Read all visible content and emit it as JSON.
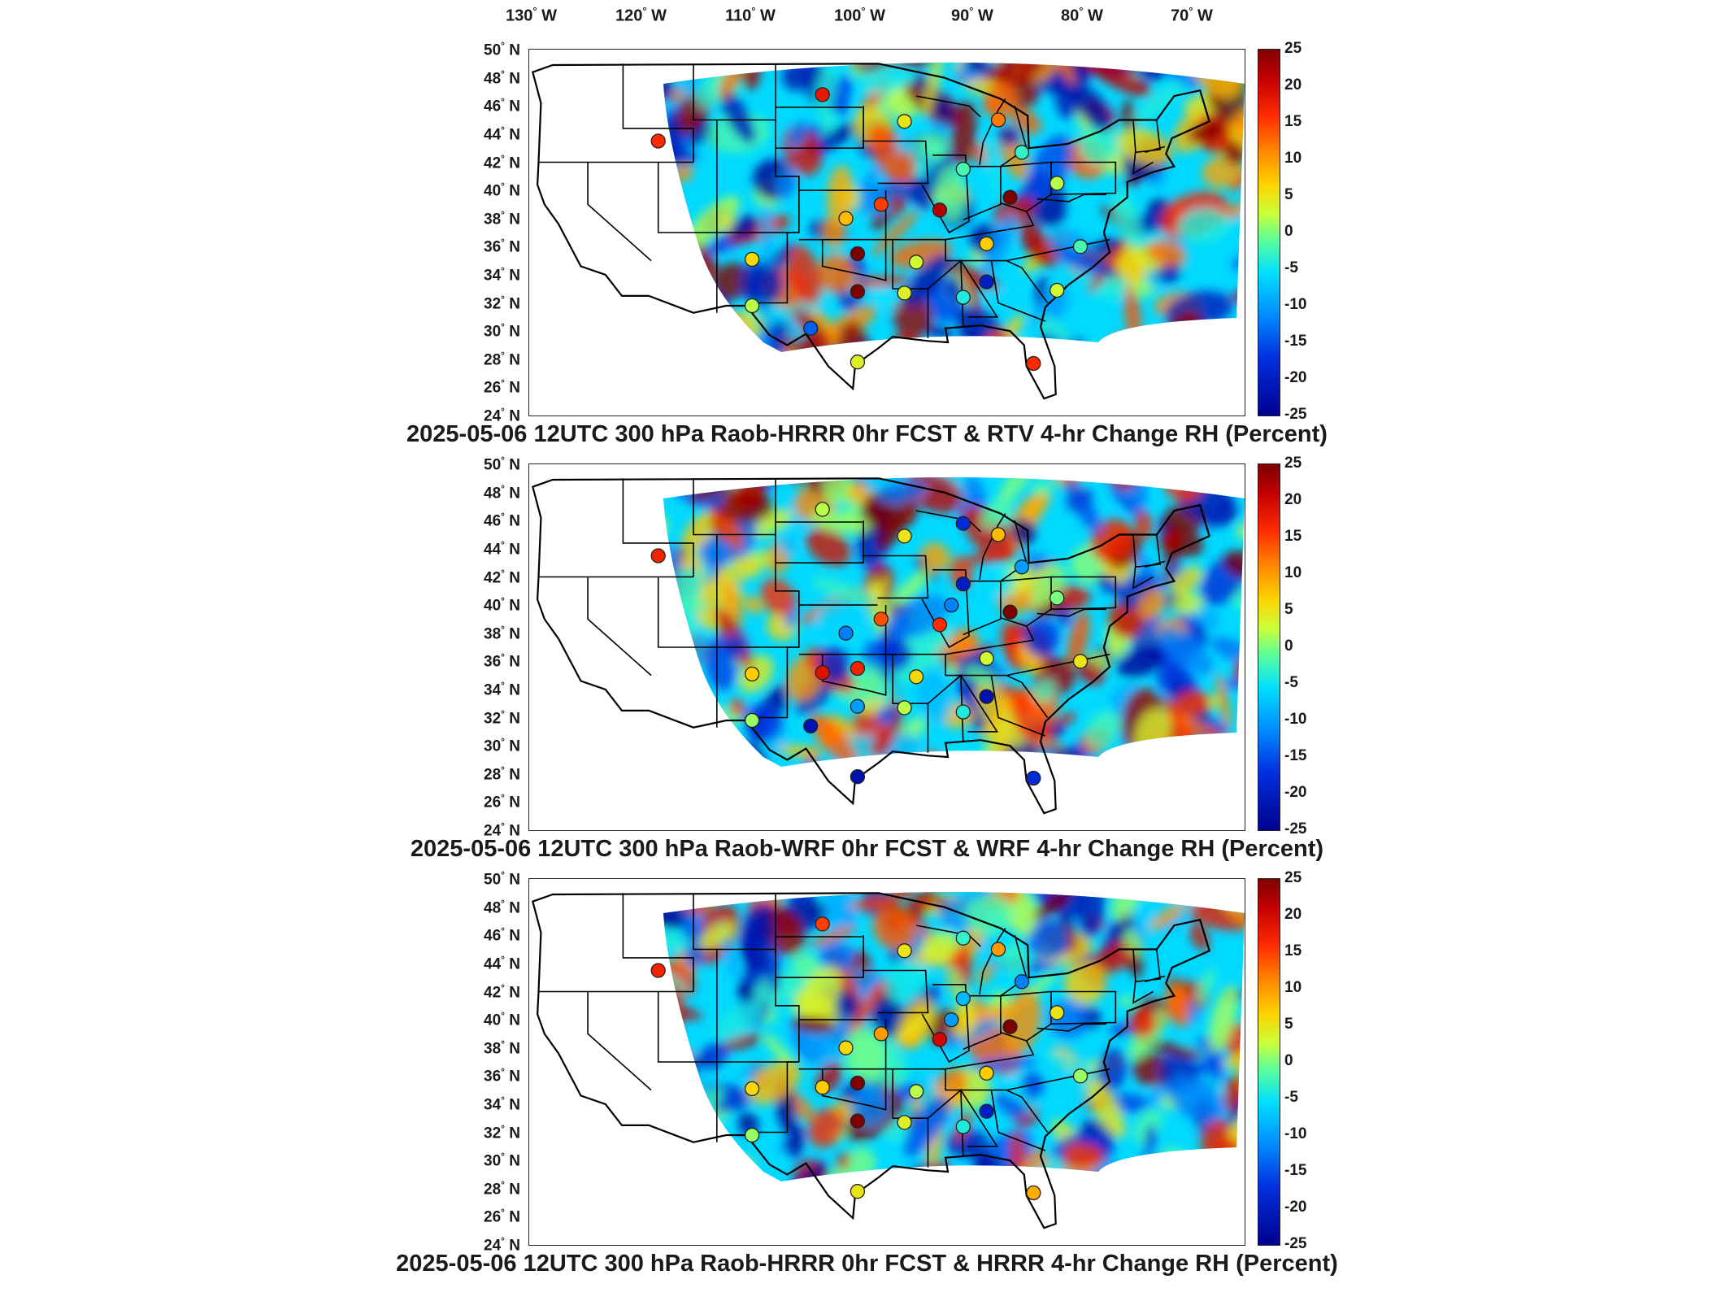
{
  "lon_labels": [
    "130",
    "120",
    "110",
    "100",
    "90",
    "80",
    "70"
  ],
  "lon_hemisphere": "W",
  "lat_labels": [
    "50",
    "48",
    "46",
    "44",
    "42",
    "40",
    "38",
    "36",
    "34",
    "32",
    "30",
    "28",
    "26",
    "24"
  ],
  "lat_hemisphere": "N",
  "degree_symbol": "°",
  "colorbar": {
    "ticks": [
      "25",
      "20",
      "15",
      "10",
      "5",
      "0",
      "-5",
      "-10",
      "-15",
      "-20",
      "-25"
    ],
    "range": [
      -25,
      25
    ],
    "colormap": "jet",
    "colors": [
      "#7f0000",
      "#ff2a00",
      "#ffd400",
      "#5dff9a",
      "#00e0ff",
      "#0030e0",
      "#00008f"
    ]
  },
  "panels": [
    {
      "title": "2025-05-06 12UTC 300 hPa Raob-HRRR 0hr FCST & RTV 4-hr Change RH (Percent)",
      "stations": [
        {
          "lon": -100,
          "lat": 46.8,
          "v": 18
        },
        {
          "lon": -114,
          "lat": 43.5,
          "v": 16
        },
        {
          "lon": -93,
          "lat": 44.9,
          "v": 5
        },
        {
          "lon": -85,
          "lat": 45.0,
          "v": 12
        },
        {
          "lon": -83,
          "lat": 42.7,
          "v": -3
        },
        {
          "lon": -88,
          "lat": 41.5,
          "v": -2
        },
        {
          "lon": -80,
          "lat": 40.5,
          "v": 2
        },
        {
          "lon": -98,
          "lat": 38.0,
          "v": 8
        },
        {
          "lon": -95,
          "lat": 39.0,
          "v": 15
        },
        {
          "lon": -90,
          "lat": 38.6,
          "v": 22
        },
        {
          "lon": -84,
          "lat": 39.5,
          "v": 25
        },
        {
          "lon": -86,
          "lat": 36.2,
          "v": 7
        },
        {
          "lon": -78,
          "lat": 36.0,
          "v": -2
        },
        {
          "lon": -106,
          "lat": 35.1,
          "v": 6
        },
        {
          "lon": -97,
          "lat": 35.5,
          "v": 25
        },
        {
          "lon": -92,
          "lat": 34.9,
          "v": 3
        },
        {
          "lon": -97,
          "lat": 32.8,
          "v": 25
        },
        {
          "lon": -93,
          "lat": 32.7,
          "v": 4
        },
        {
          "lon": -88,
          "lat": 32.4,
          "v": -4
        },
        {
          "lon": -86,
          "lat": 33.5,
          "v": -20
        },
        {
          "lon": -80,
          "lat": 32.9,
          "v": 3
        },
        {
          "lon": -106,
          "lat": 31.8,
          "v": 2
        },
        {
          "lon": -101,
          "lat": 30.2,
          "v": -14
        },
        {
          "lon": -97,
          "lat": 27.8,
          "v": 4
        },
        {
          "lon": -82,
          "lat": 27.7,
          "v": 16
        }
      ]
    },
    {
      "title": "2025-05-06 12UTC 300 hPa Raob-WRF 0hr FCST & WRF 4-hr Change RH (Percent)",
      "stations": [
        {
          "lon": -100,
          "lat": 46.8,
          "v": 2
        },
        {
          "lon": -114,
          "lat": 43.5,
          "v": 17
        },
        {
          "lon": -93,
          "lat": 44.9,
          "v": 5
        },
        {
          "lon": -85,
          "lat": 45.0,
          "v": 8
        },
        {
          "lon": -88,
          "lat": 45.8,
          "v": -18
        },
        {
          "lon": -83,
          "lat": 42.7,
          "v": -10
        },
        {
          "lon": -88,
          "lat": 41.5,
          "v": -20
        },
        {
          "lon": -89,
          "lat": 40.0,
          "v": -12
        },
        {
          "lon": -80,
          "lat": 40.5,
          "v": 0
        },
        {
          "lon": -98,
          "lat": 38.0,
          "v": -12
        },
        {
          "lon": -95,
          "lat": 39.0,
          "v": 14
        },
        {
          "lon": -90,
          "lat": 38.6,
          "v": 16
        },
        {
          "lon": -84,
          "lat": 39.5,
          "v": 25
        },
        {
          "lon": -86,
          "lat": 36.2,
          "v": 3
        },
        {
          "lon": -78,
          "lat": 36.0,
          "v": 5
        },
        {
          "lon": -106,
          "lat": 35.1,
          "v": 7
        },
        {
          "lon": -100,
          "lat": 35.2,
          "v": 19
        },
        {
          "lon": -97,
          "lat": 35.5,
          "v": 17
        },
        {
          "lon": -92,
          "lat": 34.9,
          "v": 6
        },
        {
          "lon": -97,
          "lat": 32.8,
          "v": -10
        },
        {
          "lon": -93,
          "lat": 32.7,
          "v": 2
        },
        {
          "lon": -88,
          "lat": 32.4,
          "v": -4
        },
        {
          "lon": -86,
          "lat": 33.5,
          "v": -22
        },
        {
          "lon": -106,
          "lat": 31.8,
          "v": 1
        },
        {
          "lon": -101,
          "lat": 31.4,
          "v": -22
        },
        {
          "lon": -97,
          "lat": 27.8,
          "v": -22
        },
        {
          "lon": -82,
          "lat": 27.7,
          "v": -18
        }
      ]
    },
    {
      "title": "2025-05-06 12UTC 300 hPa Raob-HRRR 0hr FCST & HRRR 4-hr Change RH (Percent)",
      "stations": [
        {
          "lon": -100,
          "lat": 46.8,
          "v": 15
        },
        {
          "lon": -114,
          "lat": 43.5,
          "v": 17
        },
        {
          "lon": -93,
          "lat": 44.9,
          "v": 5
        },
        {
          "lon": -85,
          "lat": 45.0,
          "v": 10
        },
        {
          "lon": -88,
          "lat": 45.8,
          "v": -3
        },
        {
          "lon": -83,
          "lat": 42.7,
          "v": -12
        },
        {
          "lon": -88,
          "lat": 41.5,
          "v": -8
        },
        {
          "lon": -89,
          "lat": 40.0,
          "v": -10
        },
        {
          "lon": -80,
          "lat": 40.5,
          "v": 5
        },
        {
          "lon": -98,
          "lat": 38.0,
          "v": 6
        },
        {
          "lon": -95,
          "lat": 39.0,
          "v": 10
        },
        {
          "lon": -90,
          "lat": 38.6,
          "v": 20
        },
        {
          "lon": -84,
          "lat": 39.5,
          "v": 25
        },
        {
          "lon": -86,
          "lat": 36.2,
          "v": 7
        },
        {
          "lon": -78,
          "lat": 36.0,
          "v": 1
        },
        {
          "lon": -106,
          "lat": 35.1,
          "v": 6
        },
        {
          "lon": -100,
          "lat": 35.2,
          "v": 7
        },
        {
          "lon": -97,
          "lat": 35.5,
          "v": 25
        },
        {
          "lon": -92,
          "lat": 34.9,
          "v": 2
        },
        {
          "lon": -97,
          "lat": 32.8,
          "v": 25
        },
        {
          "lon": -93,
          "lat": 32.7,
          "v": 4
        },
        {
          "lon": -88,
          "lat": 32.4,
          "v": -4
        },
        {
          "lon": -86,
          "lat": 33.5,
          "v": -20
        },
        {
          "lon": -106,
          "lat": 31.8,
          "v": 1
        },
        {
          "lon": -97,
          "lat": 27.8,
          "v": 5
        },
        {
          "lon": -82,
          "lat": 27.7,
          "v": 9
        }
      ]
    }
  ]
}
